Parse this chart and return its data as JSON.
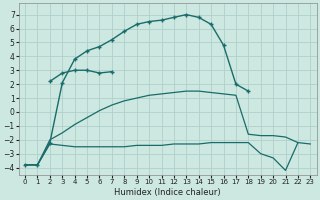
{
  "xlabel": "Humidex (Indice chaleur)",
  "bg_color": "#cce8e0",
  "grid_color": "#b0d0cc",
  "line_color": "#1a6b6b",
  "ylim": [
    -4.5,
    7.8
  ],
  "xlim": [
    -0.5,
    23.5
  ],
  "yticks": [
    -4,
    -3,
    -2,
    -1,
    0,
    1,
    2,
    3,
    4,
    5,
    6,
    7
  ],
  "xticks": [
    0,
    1,
    2,
    3,
    4,
    5,
    6,
    7,
    8,
    9,
    10,
    11,
    12,
    13,
    14,
    15,
    16,
    17,
    18,
    19,
    20,
    21,
    22,
    23
  ],
  "upper_x": [
    0,
    1,
    2,
    3,
    4,
    5,
    6,
    7,
    8,
    9,
    10,
    11,
    12,
    13,
    14,
    15,
    16,
    17,
    18
  ],
  "upper_y": [
    -3.8,
    -3.8,
    -2.2,
    2.1,
    3.8,
    4.4,
    4.7,
    5.2,
    5.8,
    6.3,
    6.5,
    6.6,
    6.8,
    7.0,
    6.8,
    6.3,
    4.8,
    2.0,
    1.5
  ],
  "mid_x": [
    2,
    3,
    4,
    5,
    6,
    7
  ],
  "mid_y": [
    2.2,
    2.8,
    3.0,
    3.0,
    2.8,
    2.9
  ],
  "diag_x": [
    0,
    1,
    2,
    3,
    4,
    5,
    6,
    7,
    8,
    9,
    10,
    11,
    12,
    13,
    14,
    15,
    16,
    17,
    18,
    19,
    20,
    21,
    22,
    23
  ],
  "diag_y": [
    -3.8,
    -3.8,
    -2.0,
    -1.5,
    -0.9,
    -0.4,
    0.1,
    0.5,
    0.8,
    1.0,
    1.2,
    1.3,
    1.4,
    1.5,
    1.5,
    1.4,
    1.3,
    1.2,
    -1.6,
    -1.7,
    -1.7,
    -1.8,
    -2.2,
    -2.3
  ],
  "bot_x": [
    0,
    1,
    2,
    3,
    4,
    5,
    6,
    7,
    8,
    9,
    10,
    11,
    12,
    13,
    14,
    15,
    16,
    17,
    18,
    19,
    20,
    21,
    22
  ],
  "bot_y": [
    -3.8,
    -3.8,
    -2.3,
    -2.4,
    -2.5,
    -2.5,
    -2.5,
    -2.5,
    -2.5,
    -2.4,
    -2.4,
    -2.4,
    -2.3,
    -2.3,
    -2.3,
    -2.2,
    -2.2,
    -2.2,
    -2.2,
    -3.0,
    -3.3,
    -4.2,
    -2.2
  ]
}
